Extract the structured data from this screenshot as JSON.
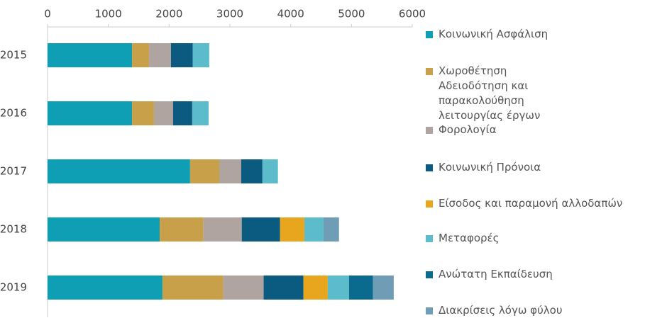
{
  "chart_data": {
    "type": "stacked-barh",
    "categories": [
      "2015",
      "2016",
      "2017",
      "2018",
      "2019"
    ],
    "series": [
      {
        "name": "Κοινωνική Ασφάλιση",
        "color": "#0e9fb5",
        "values": [
          1390,
          1390,
          2345,
          1845,
          1890
        ]
      },
      {
        "name": "Χωροθέτηση Αδειοδότηση και παρακολούθηση λειτουργίας έργων",
        "color": "#c9a04a",
        "values": [
          280,
          360,
          480,
          720,
          1000
        ]
      },
      {
        "name": "Φορολογία",
        "color": "#b0a4a1",
        "values": [
          360,
          315,
          360,
          630,
          665
        ]
      },
      {
        "name": "Κοινωνική Πρόνοια",
        "color": "#0b5a80",
        "values": [
          360,
          315,
          350,
          630,
          655
        ]
      },
      {
        "name": "Είσοδος και παραμονή αλλοδαπών",
        "color": "#e8a51e",
        "values": [
          0,
          0,
          0,
          400,
          400
        ]
      },
      {
        "name": "Μεταφορές",
        "color": "#5cbccc",
        "values": [
          270,
          270,
          255,
          315,
          350
        ]
      },
      {
        "name": "Ανώτατη Εκπαίδευση",
        "color": "#0a6b8f",
        "values": [
          0,
          0,
          0,
          0,
          395
        ]
      },
      {
        "name": "Διακρίσεις λόγω φύλου",
        "color": "#6f9db6",
        "values": [
          0,
          0,
          0,
          255,
          340
        ]
      }
    ],
    "xlim": [
      0,
      6000
    ],
    "xticks": [
      0,
      1000,
      2000,
      3000,
      4000,
      5000,
      6000
    ]
  }
}
